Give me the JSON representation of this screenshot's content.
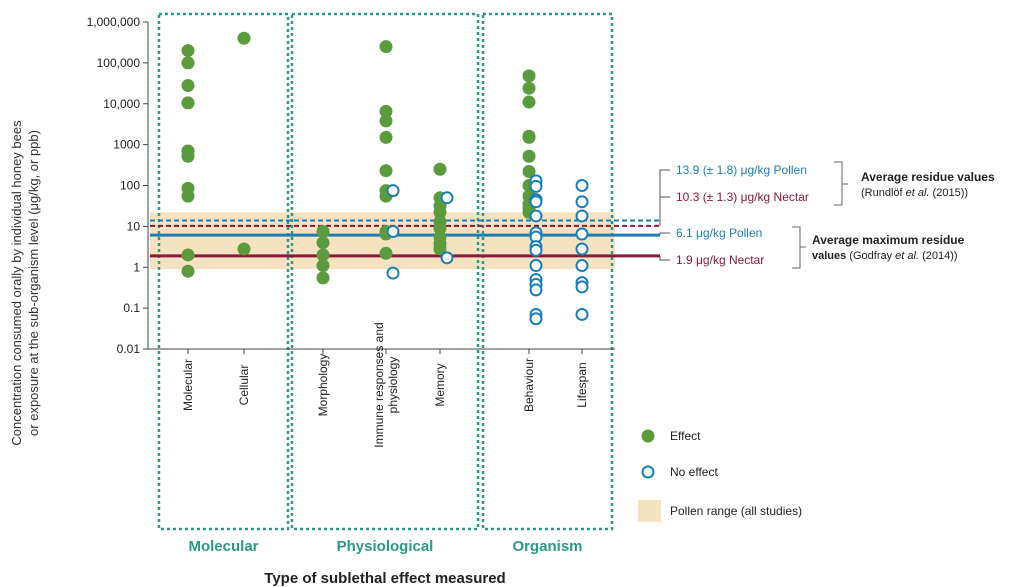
{
  "chart_data": {
    "type": "scatter",
    "ylabel_lines": [
      "Concentration consumed orally by individual honey bees",
      "or exposure at the sub-organism level (μg/kg, or ppb)"
    ],
    "xlabel": "Type of sublethal effect measured",
    "y_scale": "log",
    "ylim": [
      0.01,
      1000000
    ],
    "y_ticks": [
      {
        "value": 1000000,
        "label": "1,000,000"
      },
      {
        "value": 100000,
        "label": "100,000"
      },
      {
        "value": 10000,
        "label": "10,000"
      },
      {
        "value": 1000,
        "label": "1000"
      },
      {
        "value": 100,
        "label": "100"
      },
      {
        "value": 10,
        "label": "10"
      },
      {
        "value": 1,
        "label": "1"
      },
      {
        "value": 0.1,
        "label": "0.1"
      },
      {
        "value": 0.01,
        "label": "0.01"
      }
    ],
    "groups": [
      {
        "label": "Molecular",
        "categories": [
          "Molecular",
          "Cellular"
        ]
      },
      {
        "label": "Physiological",
        "categories": [
          "Morphology",
          "Immune responses and physiology",
          "Memory"
        ]
      },
      {
        "label": "Organism",
        "categories": [
          "Behaviour",
          "Lifespan"
        ]
      }
    ],
    "categories": [
      {
        "label": "Molecular",
        "label_lines": [
          "Molecular"
        ],
        "effect": [
          200000,
          100000,
          28000,
          10500,
          700,
          520,
          85,
          55,
          2,
          0.8
        ],
        "no_effect": []
      },
      {
        "label": "Cellular",
        "label_lines": [
          "Cellular"
        ],
        "effect": [
          400000,
          2.8
        ],
        "no_effect": []
      },
      {
        "label": "Morphology",
        "label_lines": [
          "Morphology"
        ],
        "effect": [
          7.5,
          4,
          2,
          1.1,
          0.55
        ],
        "no_effect": []
      },
      {
        "label": "Immune responses and physiology",
        "label_lines": [
          "Immune responses and",
          "physiology"
        ],
        "effect": [
          250000,
          6500,
          3800,
          1500,
          230,
          75,
          55,
          7.5,
          6.5,
          2.2
        ],
        "no_effect": [
          75,
          7.5,
          0.72
        ]
      },
      {
        "label": "Memory",
        "label_lines": [
          "Memory"
        ],
        "effect": [
          250,
          50,
          32,
          22,
          13,
          9,
          5.5,
          3.8,
          2.8
        ],
        "no_effect": [
          50,
          1.7
        ]
      },
      {
        "label": "Behaviour",
        "label_lines": [
          "Behaviour"
        ],
        "effect": [
          48000,
          24000,
          11000,
          1600,
          1500,
          520,
          220,
          100,
          55,
          35,
          28,
          22
        ],
        "no_effect": [
          130,
          95,
          45,
          40,
          18,
          7,
          5.5,
          3.2,
          2.6,
          1.1,
          0.5,
          0.38,
          0.28,
          0.07,
          0.055
        ]
      },
      {
        "label": "Lifespan",
        "label_lines": [
          "Lifespan"
        ],
        "effect": [],
        "no_effect": [
          100,
          40,
          18,
          6.5,
          2.8,
          1.1,
          0.42,
          0.33,
          0.07
        ]
      }
    ],
    "reference_lines": [
      {
        "value": 13.9,
        "text": "13.9 (± 1.8) μg/kg Pollen",
        "color": "#1a7fb8",
        "style": "dashed"
      },
      {
        "value": 10.3,
        "text": "10.3 (± 1.3) μg/kg Nectar",
        "color": "#8b1a3a",
        "style": "dashed"
      },
      {
        "value": 6.1,
        "text": "6.1 μg/kg Pollen",
        "color": "#1a7fb8",
        "style": "solid"
      },
      {
        "value": 1.9,
        "text": "1.9 μg/kg Nectar",
        "color": "#8b1a3a",
        "style": "solid"
      }
    ],
    "pollen_range": [
      0.9,
      22
    ],
    "brackets": [
      {
        "title": "Average residue values",
        "source_pre": "(Rundlöf ",
        "source_em": "et al.",
        "source_post": " (2015))"
      },
      {
        "title_lines": [
          "Average maximum residue",
          "values"
        ],
        "source_pre": " (Godfray ",
        "source_em": "et al.",
        "source_post": " (2014))"
      }
    ],
    "legend": [
      {
        "label": "Effect",
        "marker": "filled-circle"
      },
      {
        "label": "No effect",
        "marker": "open-circle"
      },
      {
        "label": "Pollen range (all studies)",
        "marker": "band"
      }
    ],
    "colors": {
      "effect": "#5a9b3e",
      "no_effect": "#1a7fb8",
      "group_border": "#2a9a86",
      "group_label": "#2a9a86",
      "pollen_band": "#f5e2c0"
    }
  }
}
